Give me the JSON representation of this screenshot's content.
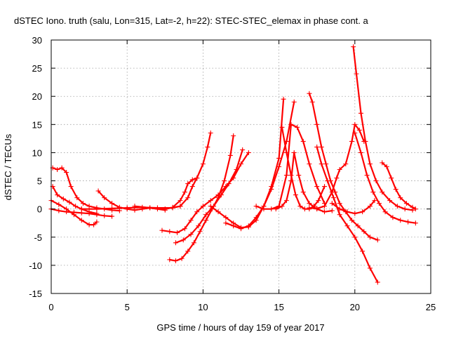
{
  "chart_data": {
    "type": "scatter",
    "title": "dSTEC Iono. truth (salu, Lon=315, Lat=-2, h=22): STEC-STEC_elemax in phase cont. a",
    "xlabel": "GPS time / hours of day 159 of year 2017",
    "ylabel": "dSTEC  / TECUs",
    "xlim": [
      0,
      25
    ],
    "ylim": [
      -15,
      30
    ],
    "xticks": [
      0,
      5,
      10,
      15,
      20,
      25
    ],
    "yticks": [
      -15,
      -10,
      -5,
      0,
      5,
      10,
      15,
      20,
      25,
      30
    ],
    "xtick_labels": [
      "0",
      "5",
      "10",
      "15",
      "20",
      "25"
    ],
    "ytick_labels": [
      "-15",
      "-10",
      "-5",
      "0",
      "5",
      "10",
      "15",
      "20",
      "25",
      "30"
    ],
    "grid": true,
    "marker": "plus",
    "color": "#ff0000",
    "series": [
      {
        "x": [
          0.1,
          0.4,
          0.7,
          1.0,
          1.3,
          1.7,
          2.1,
          2.5,
          3.0,
          3.5,
          4.0,
          4.5
        ],
        "y": [
          7.3,
          7.0,
          7.3,
          6.5,
          4.0,
          2.0,
          1.0,
          0.5,
          0.2,
          0.0,
          -0.2,
          -0.3
        ]
      },
      {
        "x": [
          0.1,
          0.4,
          0.8,
          1.2,
          1.6,
          2.0,
          2.5,
          3.0
        ],
        "y": [
          4.0,
          2.5,
          1.8,
          1.2,
          0.5,
          0.0,
          -0.5,
          -0.8
        ]
      },
      {
        "x": [
          0.0,
          0.5,
          1.0,
          1.5,
          2.0,
          2.5,
          2.8,
          3.0
        ],
        "y": [
          1.5,
          0.8,
          0.0,
          -1.0,
          -2.0,
          -2.8,
          -2.8,
          -2.3
        ]
      },
      {
        "x": [
          0.0,
          0.5,
          1.0,
          1.5,
          2.0,
          2.5,
          3.0,
          3.5,
          4.0
        ],
        "y": [
          0.0,
          -0.3,
          -0.5,
          -0.6,
          -0.7,
          -0.8,
          -1.0,
          -1.2,
          -1.3
        ]
      },
      {
        "x": [
          3.1,
          3.5,
          4.0,
          4.5,
          5.0,
          5.5,
          6.0,
          6.5,
          7.0,
          7.5
        ],
        "y": [
          3.2,
          2.0,
          1.0,
          0.3,
          0.0,
          -0.2,
          0.0,
          0.2,
          0.0,
          -0.2
        ]
      },
      {
        "x": [
          2.0,
          3.0,
          4.0,
          5.0,
          6.0,
          7.0,
          8.0,
          8.5
        ],
        "y": [
          0.0,
          0.0,
          0.1,
          0.2,
          0.3,
          0.2,
          0.2,
          0.5
        ]
      },
      {
        "x": [
          8.0,
          8.5,
          8.8,
          9.0,
          9.3,
          9.6,
          10.0,
          10.3,
          10.5
        ],
        "y": [
          0.3,
          1.5,
          3.0,
          4.5,
          5.2,
          5.5,
          8.0,
          11.0,
          13.5
        ]
      },
      {
        "x": [
          5.5,
          6.5,
          7.5,
          8.5,
          9.0,
          9.3,
          9.6
        ],
        "y": [
          0.5,
          0.2,
          0.0,
          0.5,
          2.0,
          4.0,
          5.5
        ]
      },
      {
        "x": [
          7.3,
          7.8,
          8.3,
          8.8,
          9.2,
          9.6,
          10.0,
          10.5,
          11.0,
          11.5,
          12.0,
          12.5,
          13.0
        ],
        "y": [
          -3.8,
          -4.0,
          -4.2,
          -3.5,
          -2.0,
          -0.5,
          0.5,
          1.5,
          2.5,
          4.0,
          5.5,
          8.0,
          10.0
        ]
      },
      {
        "x": [
          7.8,
          8.2,
          8.6,
          9.0,
          9.4,
          9.8,
          10.2,
          10.6,
          11.0,
          11.4,
          11.8,
          12.0
        ],
        "y": [
          -9.0,
          -9.2,
          -8.8,
          -7.5,
          -6.0,
          -4.0,
          -2.0,
          0.0,
          2.0,
          5.0,
          9.5,
          13.0
        ]
      },
      {
        "x": [
          8.2,
          8.7,
          9.2,
          9.7,
          10.2,
          10.7,
          11.2,
          11.7,
          12.2,
          12.6
        ],
        "y": [
          -6.0,
          -5.5,
          -4.5,
          -3.0,
          -1.0,
          0.5,
          2.5,
          4.5,
          7.0,
          10.5
        ]
      },
      {
        "x": [
          10.5,
          11.0,
          11.5,
          12.0,
          12.5,
          13.0,
          13.5,
          14.0,
          14.5,
          15.0,
          15.3
        ],
        "y": [
          0.5,
          -0.5,
          -1.5,
          -2.5,
          -3.3,
          -3.2,
          -2.0,
          0.5,
          4.0,
          9.0,
          19.5
        ]
      },
      {
        "x": [
          11.5,
          12.0,
          12.5,
          13.0,
          13.5,
          14.0,
          14.5,
          15.0,
          15.5,
          16.0
        ],
        "y": [
          -2.5,
          -3.0,
          -3.5,
          -3.0,
          -1.5,
          0.5,
          3.5,
          7.5,
          12.0,
          19.0
        ]
      },
      {
        "x": [
          13.5,
          14.0,
          14.5,
          15.0,
          15.5,
          15.8,
          16.2,
          16.6,
          17.0,
          17.5,
          18.0
        ],
        "y": [
          0.5,
          0.0,
          0.0,
          0.5,
          6.0,
          15.0,
          14.5,
          12.0,
          8.0,
          4.0,
          1.0
        ]
      },
      {
        "x": [
          14.8,
          15.2,
          15.5,
          15.8,
          16.0,
          16.3,
          16.6,
          17.0,
          17.5,
          18.0,
          18.5
        ],
        "y": [
          0.0,
          0.5,
          1.5,
          5.0,
          10.0,
          6.0,
          3.0,
          1.0,
          0.0,
          -0.5,
          -0.3
        ]
      },
      {
        "x": [
          15.2,
          15.5,
          15.8,
          16.1,
          16.4,
          16.7,
          17.0,
          17.3,
          17.6,
          18.0
        ],
        "y": [
          14.5,
          10.0,
          6.0,
          2.5,
          0.5,
          0.0,
          0.0,
          0.5,
          1.5,
          4.0
        ]
      },
      {
        "x": [
          17.0,
          17.2,
          17.5,
          17.8,
          18.1,
          18.4,
          18.7,
          19.0,
          19.4,
          19.8,
          20.2,
          20.6,
          21.0,
          21.5
        ],
        "y": [
          20.5,
          19.0,
          15.0,
          11.0,
          8.0,
          5.0,
          3.0,
          1.0,
          -0.5,
          -2.0,
          -3.0,
          -4.0,
          -5.0,
          -5.5
        ]
      },
      {
        "x": [
          17.5,
          17.8,
          18.2,
          18.6,
          19.0,
          19.5,
          20.0,
          20.5,
          21.0,
          21.5
        ],
        "y": [
          11.0,
          8.0,
          5.0,
          2.0,
          -1.0,
          -3.0,
          -5.0,
          -7.5,
          -10.5,
          -13.0
        ]
      },
      {
        "x": [
          17.0,
          17.5,
          18.0,
          18.5,
          18.8,
          19.0,
          19.4,
          19.8,
          20.0,
          20.3,
          20.6
        ],
        "y": [
          0.2,
          0.1,
          0.5,
          3.0,
          5.5,
          7.0,
          8.0,
          12.0,
          15.0,
          14.0,
          12.0
        ]
      },
      {
        "x": [
          19.9,
          20.1,
          20.4,
          20.7,
          21.0,
          21.4,
          21.8,
          22.3,
          22.8,
          23.3,
          23.8
        ],
        "y": [
          28.8,
          24.0,
          17.0,
          12.0,
          8.0,
          5.0,
          3.0,
          1.5,
          0.5,
          0.0,
          -0.2
        ]
      },
      {
        "x": [
          20.0,
          20.4,
          20.8,
          21.2,
          21.6,
          22.0,
          22.5,
          23.0,
          23.5,
          24.0
        ],
        "y": [
          13.5,
          10.0,
          6.0,
          3.0,
          1.0,
          -0.5,
          -1.5,
          -2.0,
          -2.3,
          -2.5
        ]
      },
      {
        "x": [
          21.8,
          22.1,
          22.4,
          22.7,
          23.0,
          23.4,
          23.8,
          24.0
        ],
        "y": [
          8.2,
          7.5,
          5.5,
          3.5,
          2.0,
          1.0,
          0.3,
          0.0
        ]
      },
      {
        "x": [
          18.5,
          19.0,
          19.5,
          20.0,
          20.5,
          21.0,
          21.3
        ],
        "y": [
          1.0,
          0.0,
          -0.5,
          -0.8,
          -0.5,
          0.5,
          1.5
        ]
      }
    ]
  }
}
